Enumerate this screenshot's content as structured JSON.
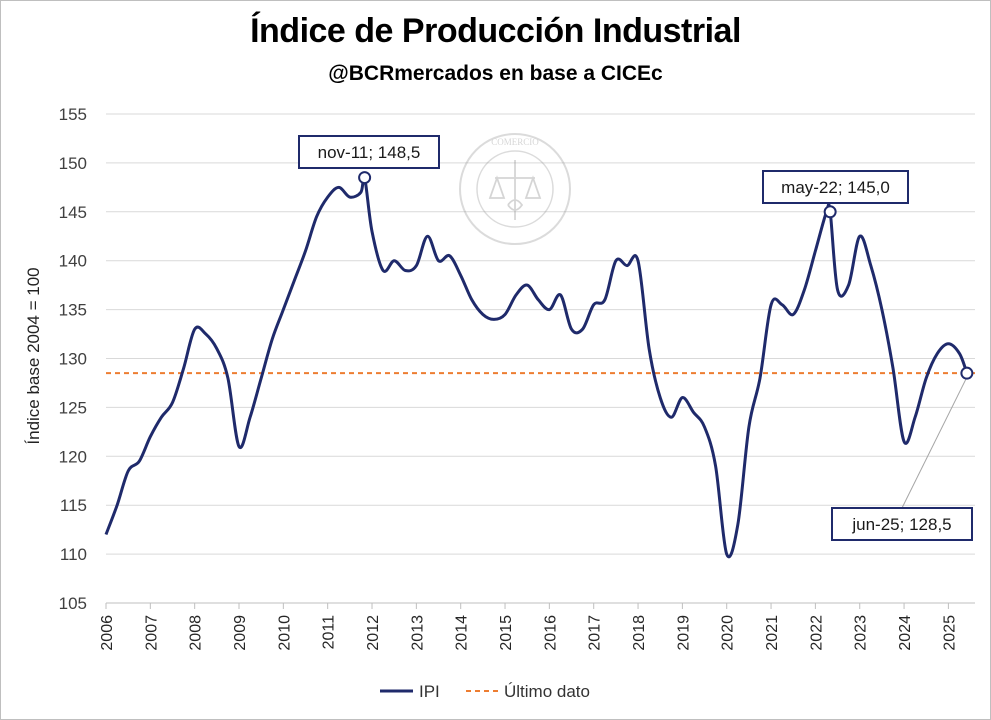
{
  "chart_data": {
    "type": "line",
    "title": "Índice de Producción Industrial",
    "subtitle": "@BCRmercados en base a CICEc",
    "ylabel": "Índice base 2004 = 100",
    "xlabel": "",
    "ylim": [
      105,
      155
    ],
    "yticks": [
      "105",
      "110",
      "115",
      "120",
      "125",
      "130",
      "135",
      "140",
      "145",
      "150",
      "155"
    ],
    "xticks": [
      "2006",
      "2007",
      "2008",
      "2009",
      "2010",
      "2011",
      "2012",
      "2013",
      "2014",
      "2015",
      "2016",
      "2017",
      "2018",
      "2019",
      "2020",
      "2021",
      "2022",
      "2023",
      "2024",
      "2025"
    ],
    "grid": true,
    "legend": "bottom",
    "series": [
      {
        "name": "IPI",
        "color": "#1f2a6b",
        "x": [
          2006.0,
          2006.25,
          2006.5,
          2006.75,
          2007.0,
          2007.25,
          2007.5,
          2007.75,
          2008.0,
          2008.25,
          2008.5,
          2008.75,
          2009.0,
          2009.25,
          2009.5,
          2009.75,
          2010.0,
          2010.25,
          2010.5,
          2010.75,
          2011.0,
          2011.25,
          2011.5,
          2011.75,
          2011.833,
          2012.0,
          2012.25,
          2012.5,
          2012.75,
          2013.0,
          2013.25,
          2013.5,
          2013.75,
          2014.0,
          2014.25,
          2014.5,
          2014.75,
          2015.0,
          2015.25,
          2015.5,
          2015.75,
          2016.0,
          2016.25,
          2016.5,
          2016.75,
          2017.0,
          2017.25,
          2017.5,
          2017.75,
          2018.0,
          2018.25,
          2018.5,
          2018.75,
          2019.0,
          2019.25,
          2019.5,
          2019.75,
          2020.0,
          2020.25,
          2020.5,
          2020.75,
          2021.0,
          2021.25,
          2021.5,
          2021.75,
          2022.0,
          2022.25,
          2022.333,
          2022.5,
          2022.75,
          2023.0,
          2023.25,
          2023.5,
          2023.75,
          2024.0,
          2024.25,
          2024.5,
          2024.75,
          2025.0,
          2025.25,
          2025.417
        ],
        "values": [
          112.0,
          115.0,
          118.5,
          119.5,
          122.0,
          124.0,
          125.5,
          129.0,
          133.0,
          132.5,
          131.0,
          128.0,
          121.0,
          124.0,
          128.0,
          132.0,
          135.0,
          138.0,
          141.0,
          144.5,
          146.5,
          147.5,
          146.5,
          147.0,
          148.5,
          143.0,
          139.0,
          140.0,
          139.0,
          139.5,
          142.5,
          140.0,
          140.5,
          138.5,
          136.0,
          134.5,
          134.0,
          134.5,
          136.5,
          137.5,
          136.0,
          135.0,
          136.5,
          133.0,
          133.0,
          135.5,
          136.0,
          140.0,
          139.5,
          140.0,
          131.0,
          126.0,
          124.0,
          126.0,
          124.5,
          123.0,
          119.0,
          110.0,
          113.0,
          123.0,
          128.0,
          135.5,
          135.5,
          134.5,
          137.0,
          141.0,
          145.0,
          145.0,
          137.0,
          137.5,
          142.5,
          139.5,
          135.0,
          129.0,
          121.5,
          124.0,
          128.0,
          130.5,
          131.5,
          130.5,
          128.5
        ]
      },
      {
        "name": "Último dato",
        "color": "#ed7d31",
        "style": "dashed",
        "constant": 128.5
      }
    ],
    "annotations": [
      {
        "label": "nov-11; 148,5",
        "x": 2011.833,
        "y": 148.5
      },
      {
        "label": "may-22; 145,0",
        "x": 2022.333,
        "y": 145.0
      },
      {
        "label": "jun-25; 128,5",
        "x": 2025.417,
        "y": 128.5
      }
    ]
  },
  "watermark": {
    "text": "BOLSA DE COMERCIO DE ROSARIO"
  }
}
